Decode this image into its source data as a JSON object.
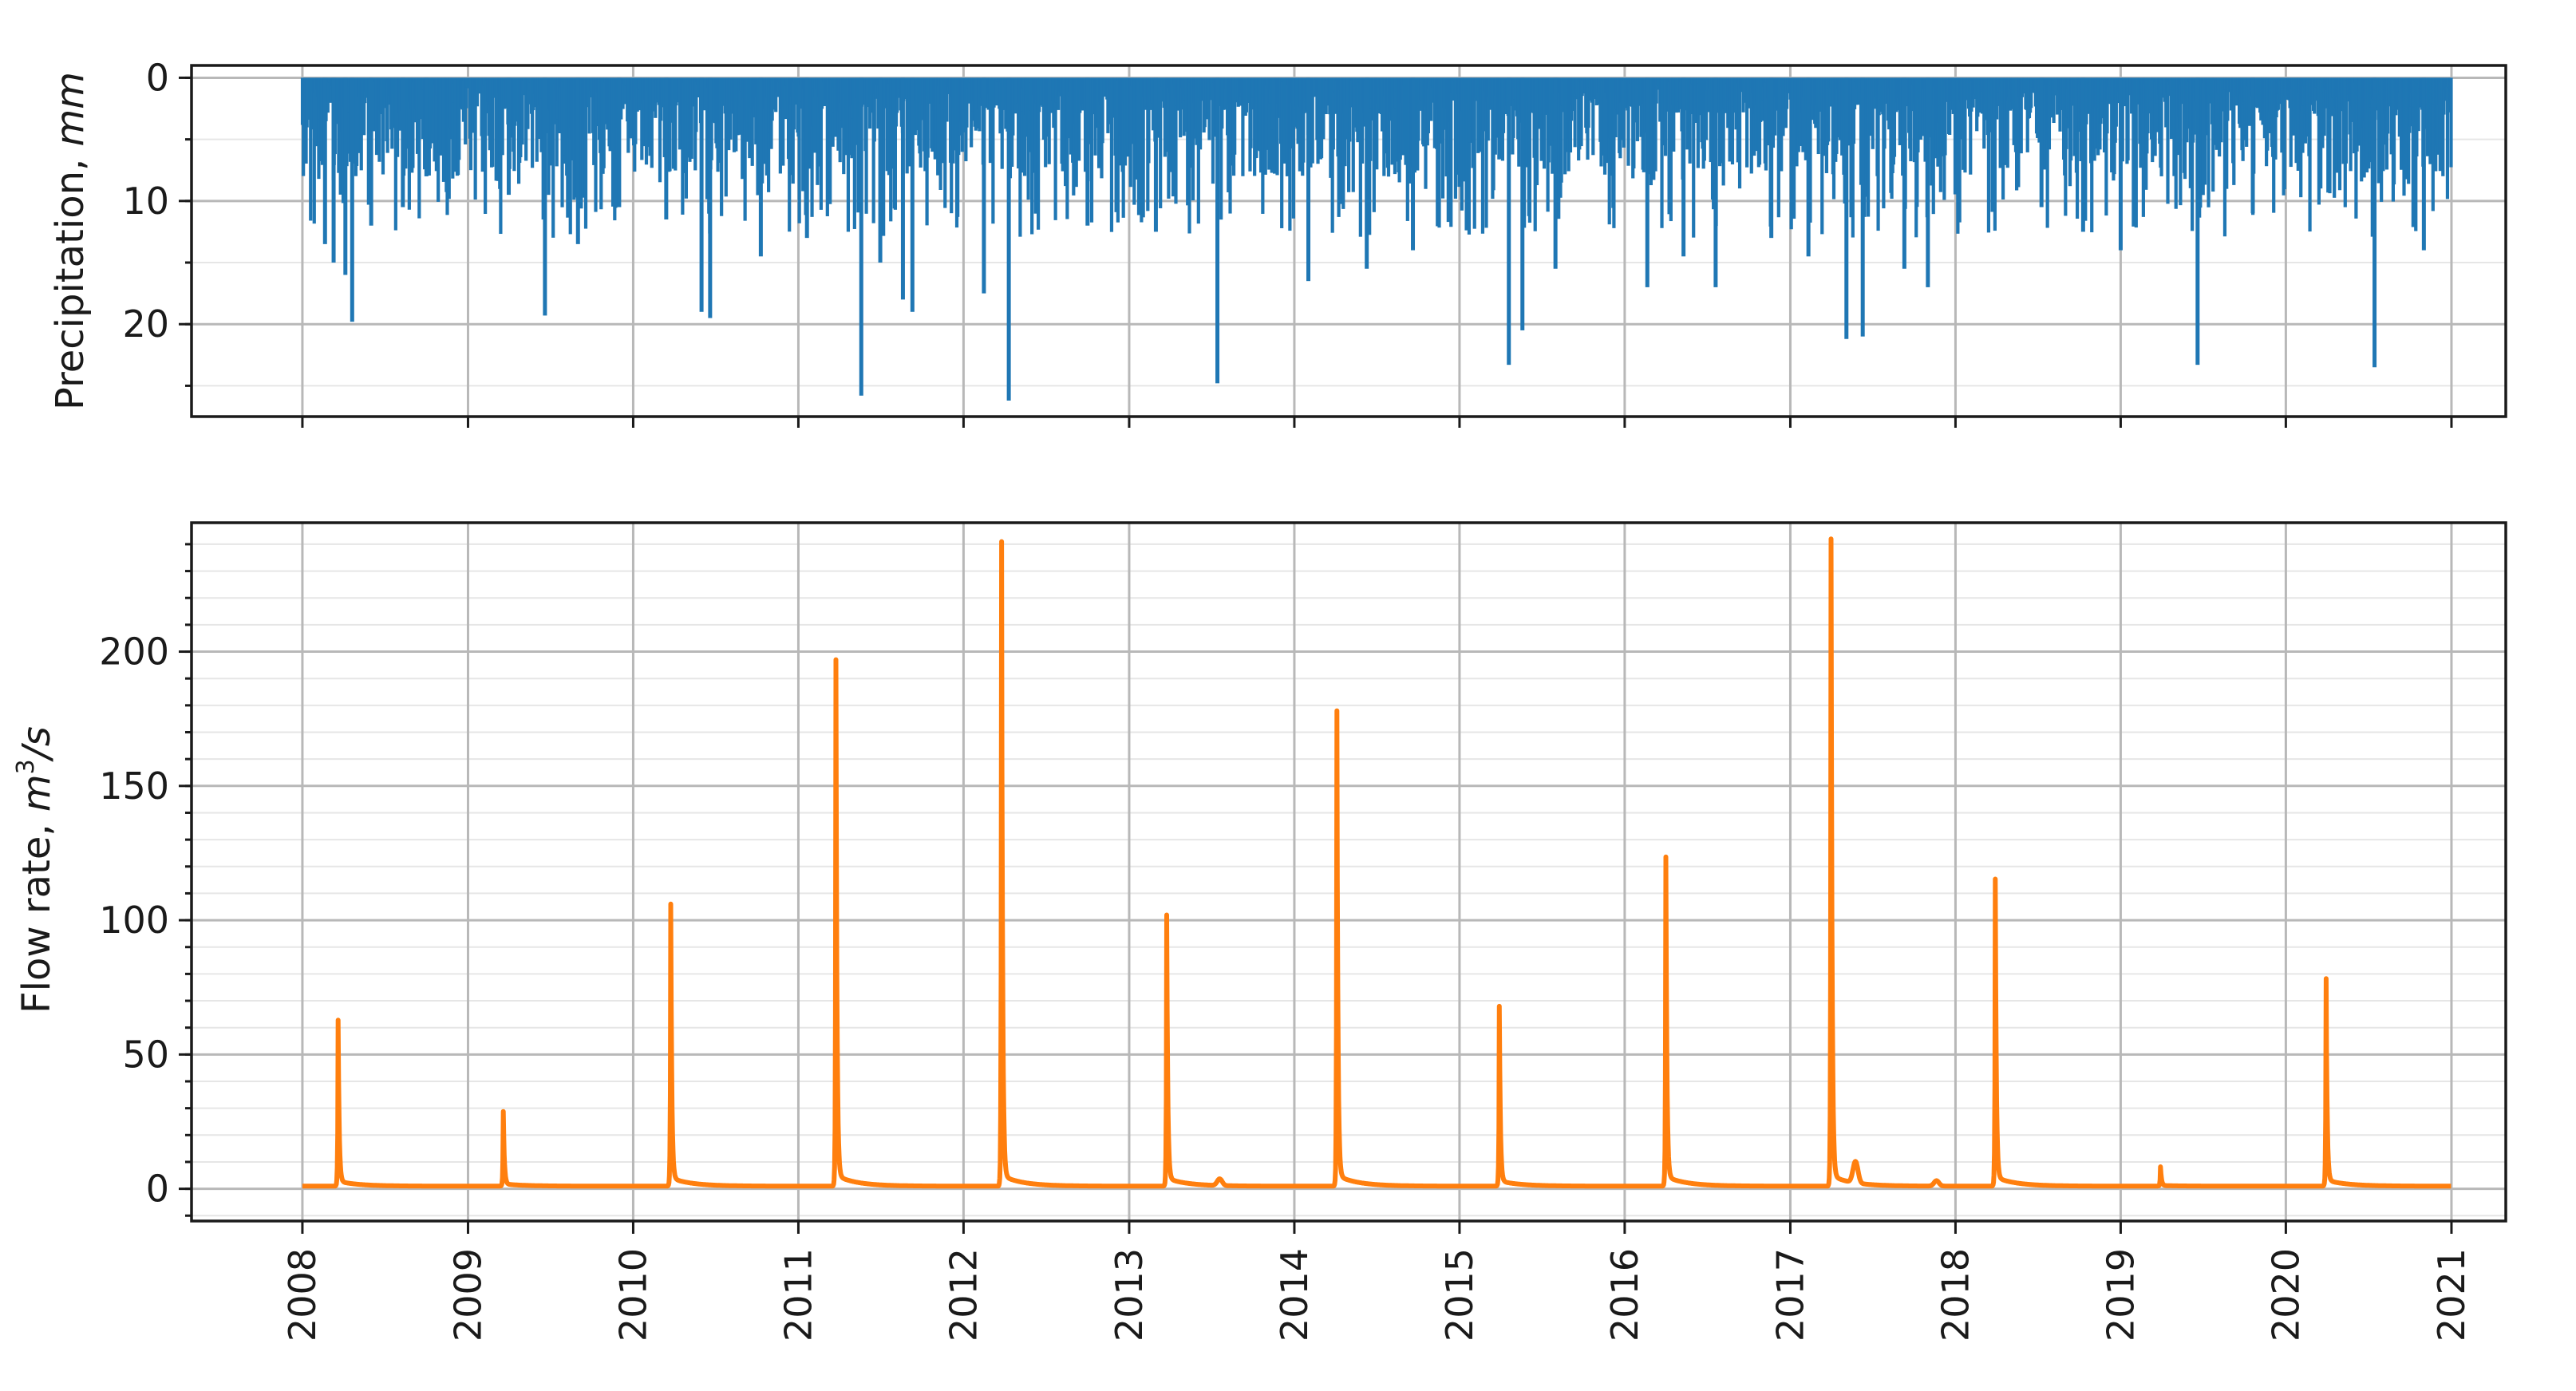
{
  "chart_data": [
    {
      "type": "bar",
      "ylabel_prefix": "Precipitation, ",
      "ylabel_unit": "mm",
      "y_inverted": true,
      "ylim": [
        27.5,
        -1
      ],
      "yticks": [
        0,
        10,
        20
      ],
      "yticks_labels": [
        "0",
        "10",
        "20"
      ],
      "yminor_step": 5,
      "xlim": [
        "2007-05-01",
        "2021-05-01"
      ],
      "grid": true,
      "color": "#1f77b4",
      "peaks": [
        {
          "date": "2008-02-20",
          "value": 13.5
        },
        {
          "date": "2008-03-10",
          "value": 15.0
        },
        {
          "date": "2008-04-05",
          "value": 16.0
        },
        {
          "date": "2008-04-20",
          "value": 19.8
        },
        {
          "date": "2008-06-01",
          "value": 12.0
        },
        {
          "date": "2008-08-10",
          "value": 10.5
        },
        {
          "date": "2008-10-01",
          "value": 8.0
        },
        {
          "date": "2009-04-01",
          "value": 9.5
        },
        {
          "date": "2009-06-20",
          "value": 19.3
        },
        {
          "date": "2009-09-01",
          "value": 13.5
        },
        {
          "date": "2009-12-01",
          "value": 10.5
        },
        {
          "date": "2010-03-15",
          "value": 11.5
        },
        {
          "date": "2010-06-01",
          "value": 19.0
        },
        {
          "date": "2010-06-20",
          "value": 19.5
        },
        {
          "date": "2010-10-10",
          "value": 14.5
        },
        {
          "date": "2011-01-20",
          "value": 13.0
        },
        {
          "date": "2011-05-20",
          "value": 25.8
        },
        {
          "date": "2011-07-01",
          "value": 15.0
        },
        {
          "date": "2011-08-20",
          "value": 18.0
        },
        {
          "date": "2011-09-10",
          "value": 19.0
        },
        {
          "date": "2012-02-15",
          "value": 17.5
        },
        {
          "date": "2012-04-10",
          "value": 26.2
        },
        {
          "date": "2012-10-01",
          "value": 12.0
        },
        {
          "date": "2013-03-01",
          "value": 12.5
        },
        {
          "date": "2013-07-15",
          "value": 24.8
        },
        {
          "date": "2014-02-01",
          "value": 16.5
        },
        {
          "date": "2014-06-10",
          "value": 15.5
        },
        {
          "date": "2014-09-20",
          "value": 14.0
        },
        {
          "date": "2015-04-20",
          "value": 23.3
        },
        {
          "date": "2015-05-20",
          "value": 20.5
        },
        {
          "date": "2015-08-01",
          "value": 15.5
        },
        {
          "date": "2016-02-20",
          "value": 17.0
        },
        {
          "date": "2016-05-10",
          "value": 14.5
        },
        {
          "date": "2016-07-20",
          "value": 17.0
        },
        {
          "date": "2016-11-20",
          "value": 13.0
        },
        {
          "date": "2017-02-10",
          "value": 14.5
        },
        {
          "date": "2017-05-05",
          "value": 21.2
        },
        {
          "date": "2017-06-10",
          "value": 21.0
        },
        {
          "date": "2017-09-10",
          "value": 15.5
        },
        {
          "date": "2017-11-01",
          "value": 17.0
        },
        {
          "date": "2018-07-10",
          "value": 10.5
        },
        {
          "date": "2018-10-10",
          "value": 12.5
        },
        {
          "date": "2019-01-01",
          "value": 14.0
        },
        {
          "date": "2019-06-20",
          "value": 23.3
        },
        {
          "date": "2019-10-20",
          "value": 11.0
        },
        {
          "date": "2020-07-15",
          "value": 23.5
        },
        {
          "date": "2020-11-01",
          "value": 14.0
        }
      ]
    },
    {
      "type": "line",
      "ylabel_prefix": "Flow rate, ",
      "ylabel_unit": "m",
      "ylabel_unit_sup": "3",
      "ylabel_unit_tail": "/s",
      "ylim": [
        -12,
        248
      ],
      "yticks": [
        0,
        50,
        100,
        150,
        200
      ],
      "yticks_labels": [
        "0",
        "50",
        "100",
        "150",
        "200"
      ],
      "yminor_step": 10,
      "xlim": [
        "2007-05-01",
        "2021-05-01"
      ],
      "xticks": [
        "2008",
        "2009",
        "2010",
        "2011",
        "2012",
        "2013",
        "2014",
        "2015",
        "2016",
        "2017",
        "2018",
        "2019",
        "2020",
        "2021"
      ],
      "grid": true,
      "color": "#ff7f0e",
      "baseflow": 1.0,
      "peaks": [
        {
          "date": "2008-03-20",
          "value": 60
        },
        {
          "date": "2009-03-20",
          "value": 27
        },
        {
          "date": "2010-03-25",
          "value": 102
        },
        {
          "date": "2011-03-25",
          "value": 192
        },
        {
          "date": "2012-03-25",
          "value": 236
        },
        {
          "date": "2013-03-25",
          "value": 98
        },
        {
          "date": "2014-04-05",
          "value": 173
        },
        {
          "date": "2015-03-30",
          "value": 65
        },
        {
          "date": "2016-04-01",
          "value": 119
        },
        {
          "date": "2017-04-01",
          "value": 237
        },
        {
          "date": "2018-03-30",
          "value": 111
        },
        {
          "date": "2019-03-30",
          "value": 7
        },
        {
          "date": "2020-03-30",
          "value": 75
        }
      ],
      "minor_bumps": [
        {
          "date": "2013-07-20",
          "value": 2.5
        },
        {
          "date": "2017-05-25",
          "value": 8
        },
        {
          "date": "2017-11-20",
          "value": 2
        }
      ]
    }
  ]
}
